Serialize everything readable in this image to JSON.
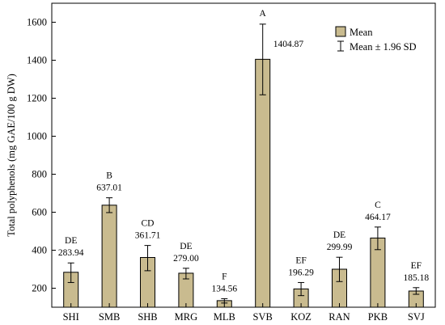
{
  "chart_data": {
    "type": "bar",
    "ylabel": "Total polyphenols (mg GAE/100 g DW)",
    "xlabel": "",
    "ylim": [
      100,
      1700
    ],
    "yticks": [
      200,
      400,
      600,
      800,
      1000,
      1200,
      1400,
      1600
    ],
    "grid": false,
    "legend_position": "top-right",
    "legend": {
      "mean": "Mean",
      "error": "Mean ± 1.96 SD"
    },
    "categories": [
      "SHI",
      "SMB",
      "SHB",
      "MRG",
      "MLB",
      "SVB",
      "KOZ",
      "RAN",
      "PKB",
      "SVJ"
    ],
    "values": [
      283.94,
      637.01,
      361.71,
      279.0,
      134.56,
      1404.87,
      196.29,
      299.99,
      464.17,
      185.18
    ],
    "value_labels": [
      "283.94",
      "637.01",
      "361.71",
      "279.00",
      "134.56",
      "1404.87",
      "196.29",
      "299.99",
      "464.17",
      "185.18"
    ],
    "error_low": [
      230,
      598,
      292,
      249,
      122,
      1218,
      161,
      235,
      403,
      168
    ],
    "error_high": [
      333,
      676,
      425,
      305,
      145,
      1590,
      230,
      363,
      522,
      203
    ],
    "letters": [
      "DE",
      "B",
      "CD",
      "DE",
      "F",
      "A",
      "EF",
      "DE",
      "C",
      "EF"
    ],
    "colors": {
      "bar_fill": "#c9bb8f",
      "bar_stroke": "#000000",
      "axis": "#000000"
    }
  }
}
